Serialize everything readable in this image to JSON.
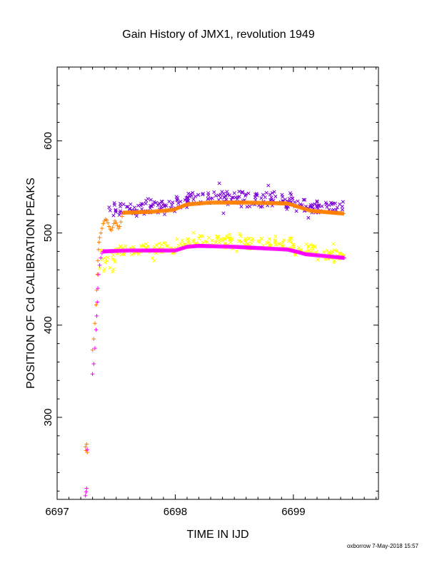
{
  "chart_data": {
    "type": "scatter",
    "title": "Gain History of JMX1, revolution 1949",
    "xlabel": "TIME IN IJD",
    "ylabel": "POSITION OF Cd CALIBRATION PEAKS",
    "xlim": [
      6697.0,
      6699.72
    ],
    "ylim": [
      211,
      680
    ],
    "xticks": [
      6697,
      6698,
      6699
    ],
    "yticks": [
      300,
      400,
      500,
      600
    ],
    "grid": false,
    "legend": "none",
    "footer": "oxborrow  7-May-2018 15:57",
    "series": [
      {
        "marker": "x",
        "color": "#7a00d6",
        "segments": [
          [
            6697.44,
            6697.55,
            518,
            535,
            8
          ],
          [
            6697.55,
            6697.75,
            520,
            532,
            10
          ],
          [
            6697.75,
            6698.0,
            522,
            536,
            10
          ],
          [
            6698.0,
            6698.1,
            526,
            540,
            10
          ],
          [
            6698.1,
            6698.6,
            532,
            545,
            12
          ],
          [
            6698.6,
            6699.0,
            528,
            544,
            12
          ],
          [
            6699.0,
            6699.2,
            522,
            536,
            10
          ],
          [
            6699.2,
            6699.43,
            520,
            534,
            10
          ]
        ],
        "count": 260
      },
      {
        "marker": "x",
        "color": "#ffff00",
        "segments": [
          [
            6697.35,
            6697.48,
            455,
            482,
            10
          ],
          [
            6697.48,
            6697.7,
            475,
            486,
            10
          ],
          [
            6697.7,
            6698.0,
            478,
            490,
            10
          ],
          [
            6698.0,
            6698.2,
            483,
            494,
            10
          ],
          [
            6698.2,
            6698.6,
            487,
            497,
            10
          ],
          [
            6698.6,
            6699.0,
            483,
            495,
            10
          ],
          [
            6699.0,
            6699.2,
            476,
            488,
            10
          ],
          [
            6699.2,
            6699.43,
            470,
            482,
            10
          ]
        ],
        "count": 260
      },
      {
        "marker": "+",
        "color": "#ff8000",
        "points": [
          [
            6697.24,
            268
          ],
          [
            6697.245,
            264
          ],
          [
            6697.25,
            271
          ],
          [
            6697.255,
            262
          ],
          [
            6697.3,
            373
          ],
          [
            6697.31,
            385
          ],
          [
            6697.32,
            402
          ],
          [
            6697.33,
            422
          ],
          [
            6697.335,
            438
          ],
          [
            6697.34,
            455
          ],
          [
            6697.345,
            470
          ],
          [
            6697.35,
            482
          ],
          [
            6697.355,
            490
          ],
          [
            6697.36,
            495
          ],
          [
            6697.37,
            500
          ],
          [
            6697.38,
            505
          ],
          [
            6697.39,
            510
          ],
          [
            6697.4,
            513
          ],
          [
            6697.41,
            515
          ],
          [
            6697.42,
            514
          ],
          [
            6697.43,
            511
          ],
          [
            6697.44,
            507
          ],
          [
            6697.45,
            504
          ],
          [
            6697.46,
            503
          ],
          [
            6697.47,
            506
          ],
          [
            6697.48,
            510
          ],
          [
            6697.49,
            513
          ],
          [
            6697.5,
            511
          ],
          [
            6697.51,
            508
          ],
          [
            6697.52,
            505
          ],
          [
            6697.53,
            507
          ],
          [
            6697.54,
            512
          ],
          [
            6697.55,
            518
          ],
          [
            6697.56,
            522
          ]
        ],
        "line": [
          [
            6697.56,
            522
          ],
          [
            6697.8,
            523
          ],
          [
            6697.98,
            525
          ],
          [
            6698.1,
            531
          ],
          [
            6698.3,
            533
          ],
          [
            6698.6,
            533
          ],
          [
            6698.95,
            532
          ],
          [
            6699.05,
            528
          ],
          [
            6699.15,
            524
          ],
          [
            6699.43,
            521
          ]
        ]
      },
      {
        "marker": "+",
        "color": "#ff00ff",
        "points": [
          [
            6697.24,
            215
          ],
          [
            6697.245,
            219
          ],
          [
            6697.25,
            223
          ],
          [
            6697.255,
            265
          ],
          [
            6697.3,
            347
          ],
          [
            6697.31,
            358
          ],
          [
            6697.32,
            375
          ],
          [
            6697.33,
            395
          ],
          [
            6697.335,
            410
          ],
          [
            6697.34,
            425
          ],
          [
            6697.345,
            440
          ],
          [
            6697.35,
            455
          ],
          [
            6697.36,
            465
          ],
          [
            6697.37,
            473
          ],
          [
            6697.38,
            478
          ],
          [
            6697.39,
            480
          ]
        ],
        "line": [
          [
            6697.39,
            480
          ],
          [
            6697.6,
            481
          ],
          [
            6698.0,
            481
          ],
          [
            6698.1,
            485
          ],
          [
            6698.2,
            486
          ],
          [
            6698.5,
            485
          ],
          [
            6698.95,
            482
          ],
          [
            6699.05,
            479
          ],
          [
            6699.1,
            477
          ],
          [
            6699.43,
            473
          ]
        ]
      }
    ]
  }
}
